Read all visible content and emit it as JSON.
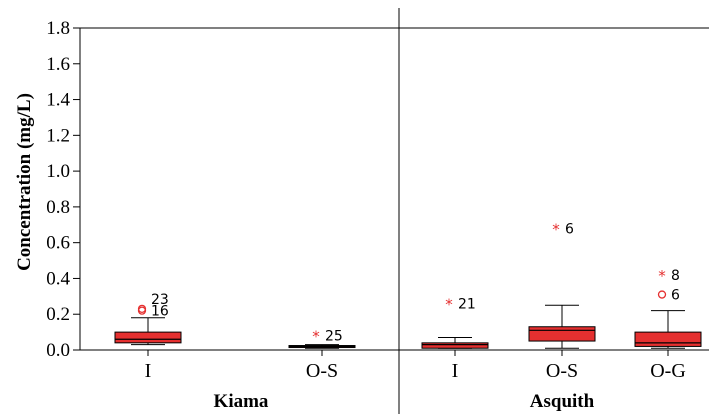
{
  "chart_data": {
    "type": "box",
    "title": "",
    "ylabel": "Concentration (mg/L)",
    "ylim": [
      0,
      1.8
    ],
    "yticks": [
      "0.0",
      "0.2",
      "0.4",
      "0.6",
      "0.8",
      "1.0",
      "1.2",
      "1.4",
      "1.6",
      "1.8"
    ],
    "grid": false,
    "colors": {
      "box_fill": "#e53030",
      "outlier": "#e53030",
      "axis": "#000000"
    },
    "groups": [
      {
        "name": "Kiama",
        "categories": [
          {
            "label": "I",
            "min": 0.03,
            "q1": 0.04,
            "median": 0.06,
            "q3": 0.1,
            "max": 0.18,
            "outliers": [
              {
                "value": 0.23,
                "symbol": "circle",
                "id": "23"
              },
              {
                "value": 0.22,
                "symbol": "circle",
                "id": "16"
              }
            ]
          },
          {
            "label": "O-S",
            "min": 0.01,
            "q1": 0.015,
            "median": 0.02,
            "q3": 0.025,
            "max": 0.03,
            "outliers": [
              {
                "value": 0.08,
                "symbol": "star",
                "id": "25"
              }
            ]
          }
        ]
      },
      {
        "name": "Asquith",
        "categories": [
          {
            "label": "I",
            "min": 0.01,
            "q1": 0.01,
            "median": 0.03,
            "q3": 0.04,
            "max": 0.07,
            "outliers": [
              {
                "value": 0.26,
                "symbol": "star",
                "id": "21"
              }
            ]
          },
          {
            "label": "O-S",
            "min": 0.01,
            "q1": 0.05,
            "median": 0.11,
            "q3": 0.13,
            "max": 0.25,
            "outliers": [
              {
                "value": 0.68,
                "symbol": "star",
                "id": "6"
              }
            ]
          },
          {
            "label": "O-G",
            "min": 0.01,
            "q1": 0.02,
            "median": 0.04,
            "q3": 0.1,
            "max": 0.22,
            "outliers": [
              {
                "value": 0.42,
                "symbol": "star",
                "id": "8"
              },
              {
                "value": 0.31,
                "symbol": "circle",
                "id": "6"
              }
            ]
          }
        ]
      }
    ]
  }
}
